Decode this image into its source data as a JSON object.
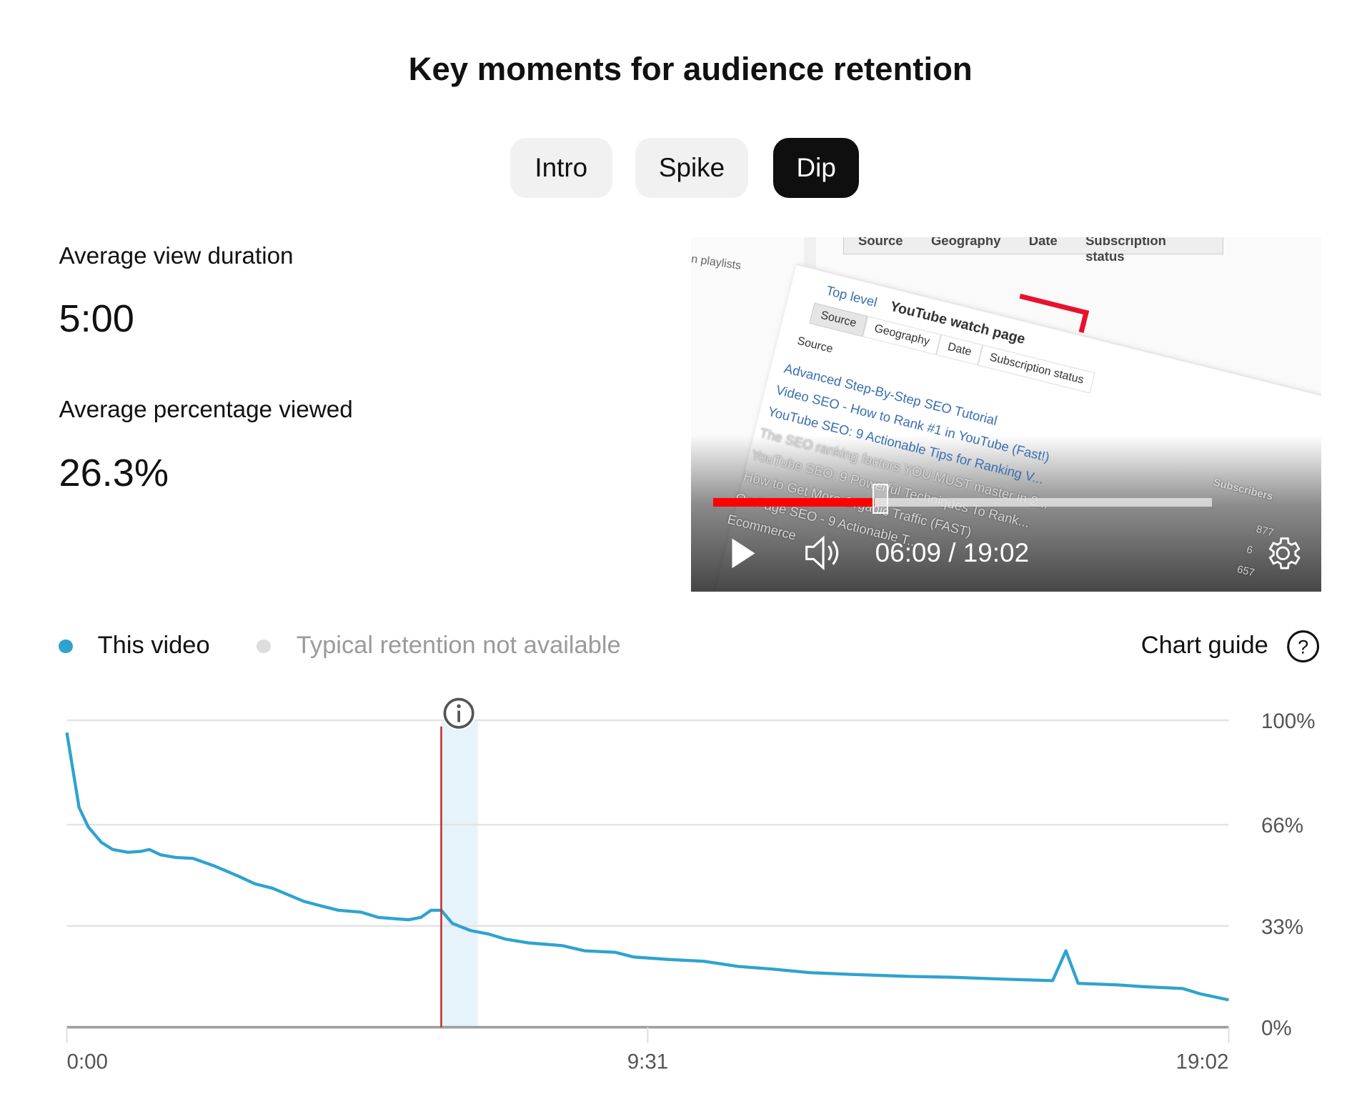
{
  "title": "Key moments for audience retention",
  "tabs": [
    {
      "label": "Intro",
      "active": false
    },
    {
      "label": "Spike",
      "active": false
    },
    {
      "label": "Dip",
      "active": true
    }
  ],
  "stats": {
    "avg_view_duration_label": "Average view duration",
    "avg_view_duration_value": "5:00",
    "avg_pct_label": "Average percentage viewed",
    "avg_pct_value": "26.3%"
  },
  "video": {
    "current_time": "06:09",
    "duration": "19:02",
    "time_display": "06:09 / 19:02",
    "progress_fraction": 0.323,
    "icons": [
      "play-icon",
      "volume-icon",
      "settings-gear-icon"
    ],
    "frame_text": {
      "top_tabs": [
        "Source",
        "Geography",
        "Date",
        "Subscription status"
      ],
      "playlists": "n playlists",
      "breadcrumb_top": "Top level",
      "breadcrumb_current": "YouTube watch page",
      "tabs": [
        "Source",
        "Geography",
        "Date",
        "Subscription status"
      ],
      "column": "Source",
      "rows": [
        "Advanced Step-By-Step SEO Tutorial",
        "Video SEO - How to Rank #1 in YouTube (Fast!)",
        "YouTube SEO: 9 Actionable Tips for Ranking V...",
        "The SEO ranking factors YOU MUST master in 2...",
        "YouTube SEO: 9 Powerful Techniques To Rank...",
        "How to Get More Organic Traffic (FAST)",
        "On Page SEO - 9 Actionable T...",
        "Ecommerce"
      ],
      "subscribers": "Subscribers",
      "numbers": [
        "877",
        "6",
        "657"
      ]
    }
  },
  "legend": {
    "this_video": "This video",
    "typical": "Typical retention not available",
    "chart_guide": "Chart guide",
    "colors": {
      "this_video": "#2ea3cf",
      "typical": "#dddddd"
    }
  },
  "chart_data": {
    "type": "line",
    "x_unit": "seconds",
    "x_tick_labels": [
      "0:00",
      "9:31",
      "19:02"
    ],
    "x_ticks_seconds": [
      0,
      571,
      1142
    ],
    "y_tick_labels": [
      "100%",
      "66%",
      "33%",
      "0%"
    ],
    "y_ticks": [
      100,
      66,
      33,
      0
    ],
    "xlim": [
      0,
      1142
    ],
    "ylim": [
      0,
      100
    ],
    "grid": true,
    "legend": "top-left",
    "line_color": "#2ea3cf",
    "marker_seconds": 368,
    "marker_color": "#c62828",
    "highlight_range_seconds": [
      368,
      404
    ],
    "highlight_color": "#e6f3fa",
    "series": [
      {
        "name": "This video",
        "x": [
          0,
          12,
          21,
          34,
          45,
          60,
          73,
          81,
          92,
          107,
          124,
          146,
          168,
          185,
          202,
          233,
          250,
          267,
          289,
          306,
          336,
          348,
          358,
          368,
          379,
          397,
          414,
          431,
          453,
          487,
          509,
          539,
          557,
          591,
          626,
          660,
          695,
          730,
          773,
          825,
          868,
          911,
          937,
          969,
          982,
          994,
          1032,
          1058,
          1097,
          1114,
          1142
        ],
        "y": [
          96,
          71.6,
          65.3,
          60.2,
          57.9,
          57,
          57.3,
          57.9,
          56.2,
          55.3,
          55,
          52.4,
          49.3,
          46.7,
          45.3,
          41,
          39.5,
          38.1,
          37.5,
          35.8,
          35,
          35.8,
          38.1,
          38.1,
          33.8,
          31.5,
          30.4,
          28.7,
          27.5,
          26.6,
          24.9,
          24.4,
          22.9,
          22.1,
          21.5,
          19.8,
          18.9,
          17.8,
          17.2,
          16.6,
          16.3,
          15.8,
          15.5,
          15.2,
          24.9,
          14.3,
          13.8,
          13.2,
          12.6,
          10.9,
          8.9
        ]
      }
    ]
  }
}
